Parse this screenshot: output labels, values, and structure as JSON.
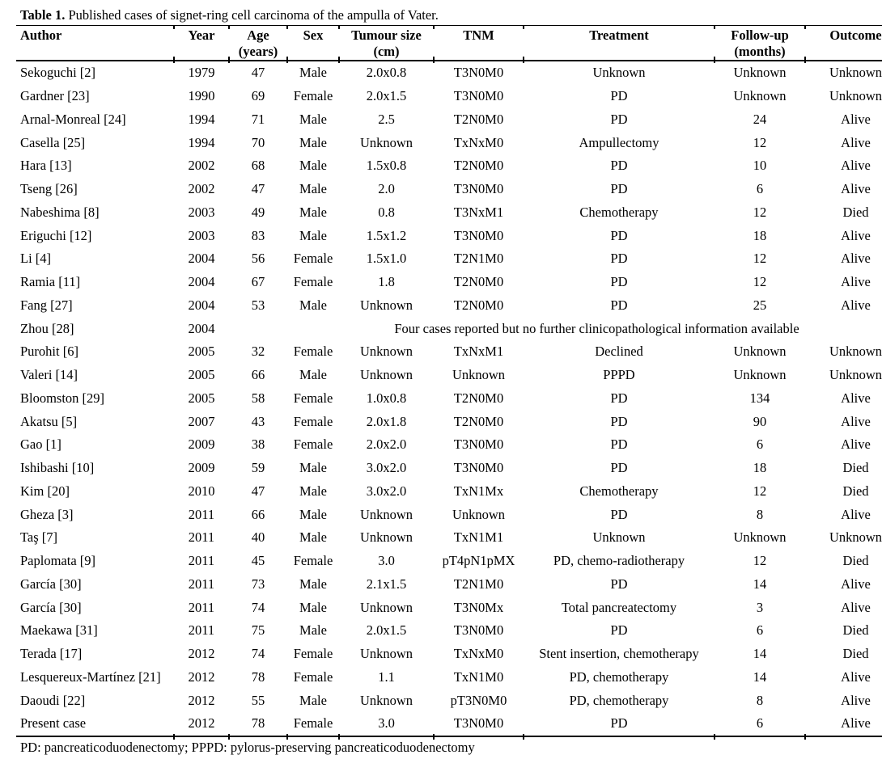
{
  "table": {
    "title_bold": "Table 1.",
    "title_rest": " Published cases of signet-ring cell carcinoma of the ampulla of Vater.",
    "columns": [
      {
        "key": "author",
        "label": "Author",
        "sub": ""
      },
      {
        "key": "year",
        "label": "Year",
        "sub": ""
      },
      {
        "key": "age",
        "label": "Age",
        "sub": "(years)"
      },
      {
        "key": "sex",
        "label": "Sex",
        "sub": ""
      },
      {
        "key": "size",
        "label": "Tumour size",
        "sub": "(cm)"
      },
      {
        "key": "tnm",
        "label": "TNM",
        "sub": ""
      },
      {
        "key": "treatment",
        "label": "Treatment",
        "sub": ""
      },
      {
        "key": "followup",
        "label": "Follow-up",
        "sub": "(months)"
      },
      {
        "key": "outcome",
        "label": "Outcome",
        "sub": ""
      }
    ],
    "rows": [
      {
        "author": "Sekoguchi [2]",
        "year": "1979",
        "age": "47",
        "sex": "Male",
        "size": "2.0x0.8",
        "tnm": "T3N0M0",
        "treatment": "Unknown",
        "followup": "Unknown",
        "outcome": "Unknown"
      },
      {
        "author": "Gardner [23]",
        "year": "1990",
        "age": "69",
        "sex": "Female",
        "size": "2.0x1.5",
        "tnm": "T3N0M0",
        "treatment": "PD",
        "followup": "Unknown",
        "outcome": "Unknown"
      },
      {
        "author": "Arnal-Monreal [24]",
        "year": "1994",
        "age": "71",
        "sex": "Male",
        "size": "2.5",
        "tnm": "T2N0M0",
        "treatment": "PD",
        "followup": "24",
        "outcome": "Alive"
      },
      {
        "author": "Casella [25]",
        "year": "1994",
        "age": "70",
        "sex": "Male",
        "size": "Unknown",
        "tnm": "TxNxM0",
        "treatment": "Ampullectomy",
        "followup": "12",
        "outcome": "Alive"
      },
      {
        "author": "Hara [13]",
        "year": "2002",
        "age": "68",
        "sex": "Male",
        "size": "1.5x0.8",
        "tnm": "T2N0M0",
        "treatment": "PD",
        "followup": "10",
        "outcome": "Alive"
      },
      {
        "author": "Tseng [26]",
        "year": "2002",
        "age": "47",
        "sex": "Male",
        "size": "2.0",
        "tnm": "T3N0M0",
        "treatment": "PD",
        "followup": "6",
        "outcome": "Alive"
      },
      {
        "author": "Nabeshima [8]",
        "year": "2003",
        "age": "49",
        "sex": "Male",
        "size": "0.8",
        "tnm": "T3NxM1",
        "treatment": "Chemotherapy",
        "followup": "12",
        "outcome": "Died"
      },
      {
        "author": "Eriguchi [12]",
        "year": "2003",
        "age": "83",
        "sex": "Male",
        "size": "1.5x1.2",
        "tnm": "T3N0M0",
        "treatment": "PD",
        "followup": "18",
        "outcome": "Alive"
      },
      {
        "author": "Li [4]",
        "year": "2004",
        "age": "56",
        "sex": "Female",
        "size": "1.5x1.0",
        "tnm": "T2N1M0",
        "treatment": "PD",
        "followup": "12",
        "outcome": "Alive"
      },
      {
        "author": "Ramia [11]",
        "year": "2004",
        "age": "67",
        "sex": "Female",
        "size": "1.8",
        "tnm": "T2N0M0",
        "treatment": "PD",
        "followup": "12",
        "outcome": "Alive"
      },
      {
        "author": "Fang [27]",
        "year": "2004",
        "age": "53",
        "sex": "Male",
        "size": "Unknown",
        "tnm": "T2N0M0",
        "treatment": "PD",
        "followup": "25",
        "outcome": "Alive"
      },
      {
        "author": "Zhou [28]",
        "year": "2004",
        "note": true
      },
      {
        "author": "Purohit [6]",
        "year": "2005",
        "age": "32",
        "sex": "Female",
        "size": "Unknown",
        "tnm": "TxNxM1",
        "treatment": "Declined",
        "followup": "Unknown",
        "outcome": "Unknown"
      },
      {
        "author": "Valeri [14]",
        "year": "2005",
        "age": "66",
        "sex": "Male",
        "size": "Unknown",
        "tnm": "Unknown",
        "treatment": "PPPD",
        "followup": "Unknown",
        "outcome": "Unknown"
      },
      {
        "author": "Bloomston [29]",
        "year": "2005",
        "age": "58",
        "sex": "Female",
        "size": "1.0x0.8",
        "tnm": "T2N0M0",
        "treatment": "PD",
        "followup": "134",
        "outcome": "Alive"
      },
      {
        "author": "Akatsu [5]",
        "year": "2007",
        "age": "43",
        "sex": "Female",
        "size": "2.0x1.8",
        "tnm": "T2N0M0",
        "treatment": "PD",
        "followup": "90",
        "outcome": "Alive"
      },
      {
        "author": "Gao [1]",
        "year": "2009",
        "age": "38",
        "sex": "Female",
        "size": "2.0x2.0",
        "tnm": "T3N0M0",
        "treatment": "PD",
        "followup": "6",
        "outcome": "Alive"
      },
      {
        "author": "Ishibashi [10]",
        "year": "2009",
        "age": "59",
        "sex": "Male",
        "size": "3.0x2.0",
        "tnm": "T3N0M0",
        "treatment": "PD",
        "followup": "18",
        "outcome": "Died"
      },
      {
        "author": "Kim [20]",
        "year": "2010",
        "age": "47",
        "sex": "Male",
        "size": "3.0x2.0",
        "tnm": "TxN1Mx",
        "treatment": "Chemotherapy",
        "followup": "12",
        "outcome": "Died"
      },
      {
        "author": "Gheza [3]",
        "year": "2011",
        "age": "66",
        "sex": "Male",
        "size": "Unknown",
        "tnm": "Unknown",
        "treatment": "PD",
        "followup": "8",
        "outcome": "Alive"
      },
      {
        "author": "Taş [7]",
        "year": "2011",
        "age": "40",
        "sex": "Male",
        "size": "Unknown",
        "tnm": "TxN1M1",
        "treatment": "Unknown",
        "followup": "Unknown",
        "outcome": "Unknown"
      },
      {
        "author": "Paplomata [9]",
        "year": "2011",
        "age": "45",
        "sex": "Female",
        "size": "3.0",
        "tnm": "pT4pN1pMX",
        "treatment": "PD, chemo-radiotherapy",
        "followup": "12",
        "outcome": "Died"
      },
      {
        "author": "García [30]",
        "year": "2011",
        "age": "73",
        "sex": "Male",
        "size": "2.1x1.5",
        "tnm": "T2N1M0",
        "treatment": "PD",
        "followup": "14",
        "outcome": "Alive"
      },
      {
        "author": "García [30]",
        "year": "2011",
        "age": "74",
        "sex": "Male",
        "size": "Unknown",
        "tnm": "T3N0Mx",
        "treatment": "Total pancreatectomy",
        "followup": "3",
        "outcome": "Alive"
      },
      {
        "author": "Maekawa [31]",
        "year": "2011",
        "age": "75",
        "sex": "Male",
        "size": "2.0x1.5",
        "tnm": "T3N0M0",
        "treatment": "PD",
        "followup": "6",
        "outcome": "Died"
      },
      {
        "author": "Terada [17]",
        "year": "2012",
        "age": "74",
        "sex": "Female",
        "size": "Unknown",
        "tnm": "TxNxM0",
        "treatment": "Stent insertion, chemotherapy",
        "followup": "14",
        "outcome": "Died"
      },
      {
        "author": "Lesquereux-Martínez [21]",
        "year": "2012",
        "age": "78",
        "sex": "Female",
        "size": "1.1",
        "tnm": "TxN1M0",
        "treatment": "PD, chemotherapy",
        "followup": "14",
        "outcome": "Alive"
      },
      {
        "author": "Daoudi [22]",
        "year": "2012",
        "age": "55",
        "sex": "Male",
        "size": "Unknown",
        "tnm": "pT3N0M0",
        "treatment": "PD, chemotherapy",
        "followup": "8",
        "outcome": "Alive"
      },
      {
        "author": "Present case",
        "year": "2012",
        "age": "78",
        "sex": "Female",
        "size": "3.0",
        "tnm": "T3N0M0",
        "treatment": "PD",
        "followup": "6",
        "outcome": "Alive"
      }
    ],
    "span_note": "Four cases reported but no further clinicopathological information available",
    "footnote": "PD: pancreaticoduodenectomy; PPPD: pylorus-preserving pancreaticoduodenectomy"
  }
}
